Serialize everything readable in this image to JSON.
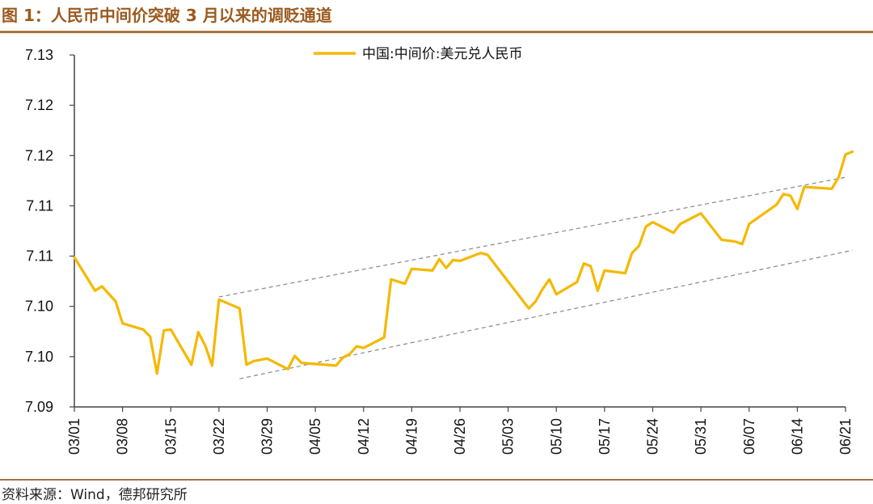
{
  "header": {
    "title": "图 1：人民币中间价突破 3 月以来的调贬通道"
  },
  "footer": {
    "source": "资料来源：Wind，德邦研究所"
  },
  "chart_data": {
    "type": "line",
    "legend_position": "top-center",
    "grid": false,
    "y_tick_labels": [
      "7.13",
      "7.12",
      "7.12",
      "7.11",
      "7.11",
      "7.10",
      "7.10",
      "7.09"
    ],
    "ylim": [
      7.09,
      7.13
    ],
    "x_tick_labels": [
      "03/01",
      "03/08",
      "03/15",
      "03/22",
      "03/29",
      "04/05",
      "04/12",
      "04/19",
      "04/26",
      "05/03",
      "05/10",
      "05/17",
      "05/24",
      "05/31",
      "06/07",
      "06/14",
      "06/21"
    ],
    "series": [
      {
        "name": "中国:中间价:美元兑人民币",
        "color": "#f5b800",
        "points": [
          [
            "03/01",
            7.107
          ],
          [
            "03/04",
            7.1032
          ],
          [
            "03/05",
            7.1037
          ],
          [
            "03/07",
            7.102
          ],
          [
            "03/08",
            7.0995
          ],
          [
            "03/11",
            7.0988
          ],
          [
            "03/12",
            7.098
          ],
          [
            "03/13",
            7.0938
          ],
          [
            "03/14",
            7.0987
          ],
          [
            "03/15",
            7.0988
          ],
          [
            "03/18",
            7.0948
          ],
          [
            "03/19",
            7.0985
          ],
          [
            "03/20",
            7.097
          ],
          [
            "03/21",
            7.0947
          ],
          [
            "03/22",
            7.1022
          ],
          [
            "03/25",
            7.1012
          ],
          [
            "03/26",
            7.0948
          ],
          [
            "03/27",
            7.0952
          ],
          [
            "03/29",
            7.0955
          ],
          [
            "04/01",
            7.0943
          ],
          [
            "04/02",
            7.0958
          ],
          [
            "04/03",
            7.095
          ],
          [
            "04/08",
            7.0947
          ],
          [
            "04/09",
            7.0956
          ],
          [
            "04/10",
            7.096
          ],
          [
            "04/11",
            7.0969
          ],
          [
            "04/12",
            7.0967
          ],
          [
            "04/15",
            7.0979
          ],
          [
            "04/16",
            7.1045
          ],
          [
            "04/18",
            7.104
          ],
          [
            "04/19",
            7.1057
          ],
          [
            "04/22",
            7.1055
          ],
          [
            "04/23",
            7.1068
          ],
          [
            "04/24",
            7.1058
          ],
          [
            "04/25",
            7.1067
          ],
          [
            "04/26",
            7.1066
          ],
          [
            "04/29",
            7.1075
          ],
          [
            "04/30",
            7.1073
          ],
          [
            "05/06",
            7.1012
          ],
          [
            "05/07",
            7.102
          ],
          [
            "05/08",
            7.1034
          ],
          [
            "05/09",
            7.1045
          ],
          [
            "05/10",
            7.1028
          ],
          [
            "05/13",
            7.1042
          ],
          [
            "05/14",
            7.1063
          ],
          [
            "05/15",
            7.106
          ],
          [
            "05/16",
            7.1032
          ],
          [
            "05/17",
            7.1055
          ],
          [
            "05/20",
            7.1052
          ],
          [
            "05/21",
            7.1075
          ],
          [
            "05/22",
            7.1083
          ],
          [
            "05/23",
            7.1105
          ],
          [
            "05/24",
            7.111
          ],
          [
            "05/27",
            7.1098
          ],
          [
            "05/28",
            7.1108
          ],
          [
            "05/31",
            7.112
          ],
          [
            "06/03",
            7.109
          ],
          [
            "06/04",
            7.1089
          ],
          [
            "06/05",
            7.1088
          ],
          [
            "06/06",
            7.1085
          ],
          [
            "06/07",
            7.1108
          ],
          [
            "06/11",
            7.113
          ],
          [
            "06/12",
            7.1142
          ],
          [
            "06/13",
            7.114
          ],
          [
            "06/14",
            7.1125
          ],
          [
            "06/15",
            7.115
          ],
          [
            "06/19",
            7.1148
          ],
          [
            "06/20",
            7.1161
          ],
          [
            "06/21",
            7.1187
          ],
          [
            "06/22",
            7.119
          ]
        ]
      }
    ],
    "trend_channel": {
      "style": "dashed",
      "color": "#888888",
      "lines": [
        {
          "from": [
            "03/22",
            7.1025
          ],
          "to": [
            "06/21",
            7.1161
          ]
        },
        {
          "from": [
            "03/25",
            7.0932
          ],
          "to": [
            "06/22",
            7.1078
          ]
        }
      ]
    }
  }
}
